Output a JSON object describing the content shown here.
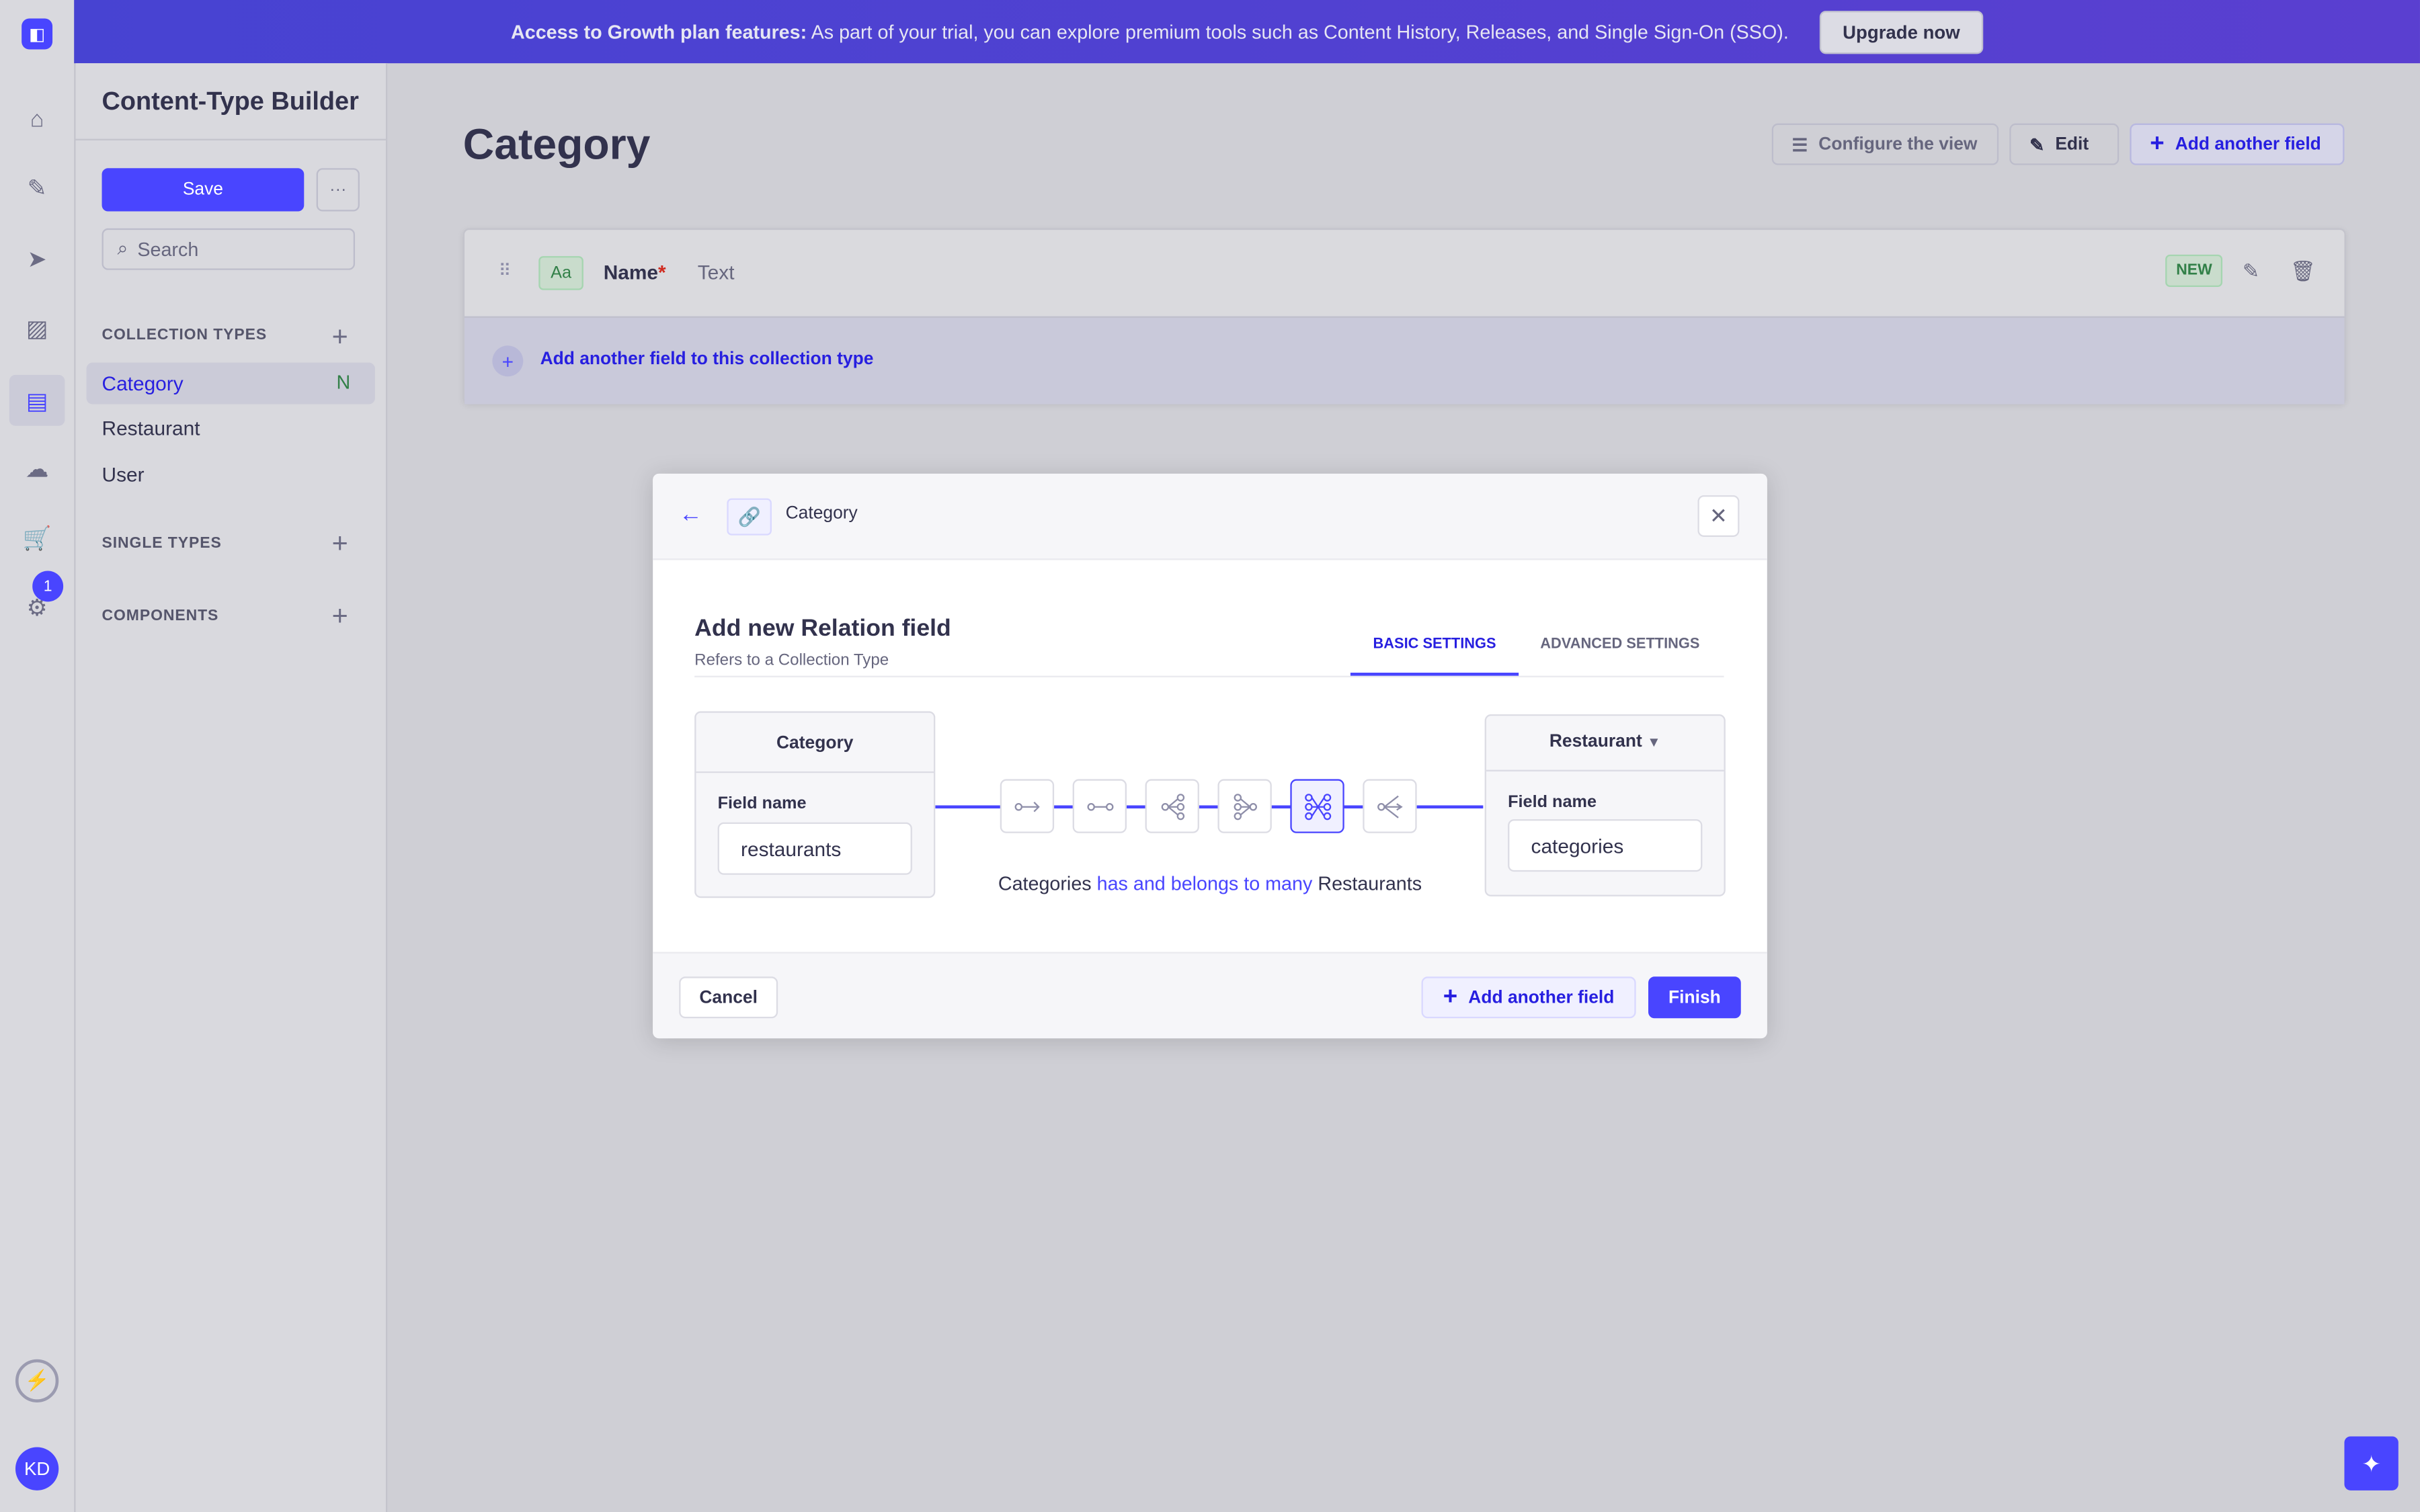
{
  "banner": {
    "title": "Access to Growth plan features:",
    "text": "As part of your trial, you can explore premium tools such as Content History, Releases, and Single Sign-On (SSO).",
    "button": "Upgrade now"
  },
  "rail": {
    "badge": "1",
    "avatar": "KD"
  },
  "sidebar": {
    "title": "Content-Type Builder",
    "save": "Save",
    "more": "···",
    "search_placeholder": "Search",
    "collection_types": "COLLECTION TYPES",
    "items": [
      {
        "label": "Category",
        "badge": "N"
      },
      {
        "label": "Restaurant"
      },
      {
        "label": "User"
      }
    ],
    "single_types": "SINGLE TYPES",
    "components": "COMPONENTS"
  },
  "main": {
    "title": "Category",
    "configure": "Configure the view",
    "edit": "Edit",
    "add_field": "Add another field",
    "field": {
      "icon": "Aa",
      "name": "Name",
      "required": "*",
      "type": "Text",
      "badge": "NEW"
    },
    "add_to_collection": "Add another field to this collection type"
  },
  "modal": {
    "breadcrumb": "Category",
    "title": "Add new Relation field",
    "subtitle": "Refers to a Collection Type",
    "tabs": [
      "BASIC SETTINGS",
      "ADVANCED SETTINGS"
    ],
    "left": {
      "header": "Category",
      "label": "Field name",
      "value": "restaurants"
    },
    "right": {
      "header": "Restaurant",
      "label": "Field name",
      "value": "categories"
    },
    "sentence": {
      "a": "Categories",
      "rel": "has and belongs to many",
      "b": "Restaurants"
    },
    "cancel": "Cancel",
    "add_another": "Add another field",
    "finish": "Finish"
  },
  "colors": {
    "primary": "#4945ff",
    "success": "#328048"
  }
}
